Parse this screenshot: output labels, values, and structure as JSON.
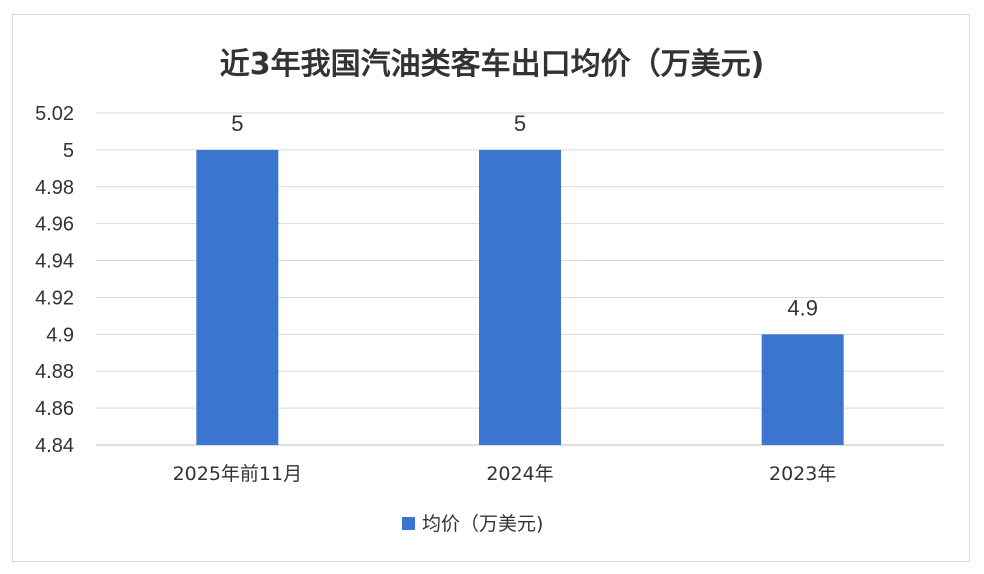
{
  "chart_data": {
    "type": "bar",
    "title": "近3年我国汽油类客车出口均价（万美元)",
    "categories": [
      "2025年前11月",
      "2024年",
      "2023年"
    ],
    "series": [
      {
        "name": "均价（万美元)",
        "values": [
          5,
          5,
          4.9
        ],
        "color": "#3a76d0"
      }
    ],
    "data_labels": [
      "5",
      "5",
      "4.9"
    ],
    "ylim": [
      4.84,
      5.02
    ],
    "yticks": [
      4.84,
      4.86,
      4.88,
      4.9,
      4.92,
      4.94,
      4.96,
      4.98,
      5,
      5.02
    ],
    "ytick_labels": [
      "4.84",
      "4.86",
      "4.88",
      "4.9",
      "4.92",
      "4.94",
      "4.96",
      "4.98",
      "5",
      "5.02"
    ],
    "grid": true,
    "legend_position": "bottom"
  }
}
